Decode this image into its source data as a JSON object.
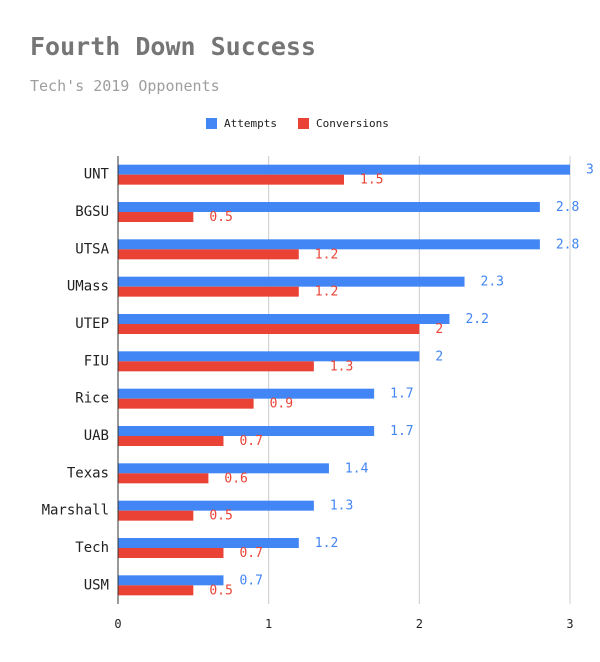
{
  "chart_data": {
    "type": "bar",
    "orientation": "horizontal",
    "title": "Fourth Down Success",
    "subtitle": "Tech's 2019 Opponents",
    "categories": [
      "UNT",
      "BGSU",
      "UTSA",
      "UMass",
      "UTEP",
      "FIU",
      "Rice",
      "UAB",
      "Texas",
      "Marshall",
      "Tech",
      "USM"
    ],
    "series": [
      {
        "name": "Attempts",
        "color": "#4285f4",
        "values": [
          3,
          2.8,
          2.8,
          2.3,
          2.2,
          2,
          1.7,
          1.7,
          1.4,
          1.3,
          1.2,
          0.7
        ]
      },
      {
        "name": "Conversions",
        "color": "#ea4335",
        "values": [
          1.5,
          0.5,
          1.2,
          1.2,
          2,
          1.3,
          0.9,
          0.7,
          0.6,
          0.5,
          0.7,
          0.5
        ]
      }
    ],
    "xlim": [
      0,
      3
    ],
    "xticks": [
      "0",
      "1",
      "2",
      "3"
    ],
    "grid": true,
    "legend_position": "top"
  }
}
